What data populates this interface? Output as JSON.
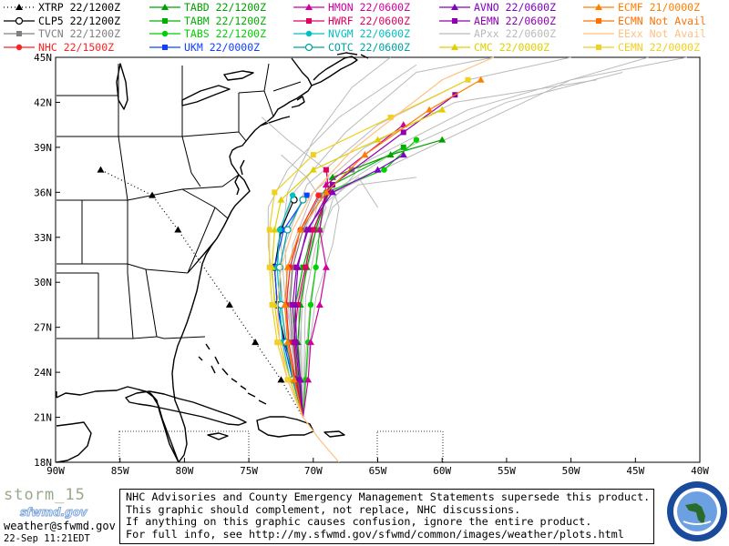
{
  "legend": [
    {
      "id": "xtrp",
      "label": "XTRP",
      "time": "22/1200Z",
      "color": "#000000",
      "marker": "triangle",
      "dash": "dotted"
    },
    {
      "id": "clp5",
      "label": "CLP5",
      "time": "22/1200Z",
      "color": "#000000",
      "marker": "open-circle",
      "dash": "solid"
    },
    {
      "id": "tvcn",
      "label": "TVCN",
      "time": "22/1200Z",
      "color": "#808080",
      "marker": "square",
      "dash": "solid"
    },
    {
      "id": "nhc",
      "label": "NHC",
      "time": "22/1500Z",
      "color": "#ff2020",
      "marker": "circle",
      "dash": "solid"
    },
    {
      "id": "tabd",
      "label": "TABD",
      "time": "22/1200Z",
      "color": "#00a000",
      "marker": "triangle",
      "dash": "solid"
    },
    {
      "id": "tabm",
      "label": "TABM",
      "time": "22/1200Z",
      "color": "#00b000",
      "marker": "square",
      "dash": "solid"
    },
    {
      "id": "tabs",
      "label": "TABS",
      "time": "22/1200Z",
      "color": "#00d000",
      "marker": "circle",
      "dash": "solid"
    },
    {
      "id": "ukm",
      "label": "UKM",
      "time": "22/0000Z",
      "color": "#1040ff",
      "marker": "square",
      "dash": "solid"
    },
    {
      "id": "hmon",
      "label": "HMON",
      "time": "22/0600Z",
      "color": "#d000a0",
      "marker": "triangle",
      "dash": "solid"
    },
    {
      "id": "hwrf",
      "label": "HWRF",
      "time": "22/0600Z",
      "color": "#e00060",
      "marker": "square",
      "dash": "solid"
    },
    {
      "id": "nvgm",
      "label": "NVGM",
      "time": "22/0600Z",
      "color": "#00c0c0",
      "marker": "circle",
      "dash": "solid"
    },
    {
      "id": "cotc",
      "label": "COTC",
      "time": "22/0600Z",
      "color": "#00a0a0",
      "marker": "open-circle",
      "dash": "solid"
    },
    {
      "id": "avno",
      "label": "AVNO",
      "time": "22/0600Z",
      "color": "#8000c0",
      "marker": "triangle",
      "dash": "solid"
    },
    {
      "id": "aemn",
      "label": "AEMN",
      "time": "22/0600Z",
      "color": "#9000b0",
      "marker": "square",
      "dash": "solid"
    },
    {
      "id": "apxx",
      "label": "APxx",
      "time": "22/0600Z",
      "color": "#bbbbbb",
      "marker": "none",
      "dash": "solid"
    },
    {
      "id": "cmc",
      "label": "CMC",
      "time": "22/0000Z",
      "color": "#e0d000",
      "marker": "triangle",
      "dash": "solid"
    },
    {
      "id": "ecmf",
      "label": "ECMF",
      "time": "21/0000Z",
      "color": "#ff8000",
      "marker": "triangle",
      "dash": "solid"
    },
    {
      "id": "ecmn",
      "label": "ECMN",
      "time": "Not Avail",
      "color": "#ff7000",
      "marker": "square",
      "dash": "solid"
    },
    {
      "id": "eexx",
      "label": "EExx",
      "time": "Not Avail",
      "color": "#ffc080",
      "marker": "none",
      "dash": "solid"
    },
    {
      "id": "cemn",
      "label": "CEMN",
      "time": "22/0000Z",
      "color": "#f0d020",
      "marker": "square",
      "dash": "solid"
    }
  ],
  "axes": {
    "lon_labels": [
      "90W",
      "85W",
      "80W",
      "75W",
      "70W",
      "65W",
      "60W",
      "55W",
      "50W",
      "45W",
      "40W"
    ],
    "lat_labels": [
      "45N",
      "42N",
      "39N",
      "36N",
      "33N",
      "30N",
      "27N",
      "24N",
      "21N",
      "18N"
    ],
    "lon_range": [
      -90,
      -40
    ],
    "lat_range": [
      18,
      45
    ]
  },
  "footer": {
    "storm_name": "storm_15",
    "logo_text": "sfwmd.gov",
    "email": "weather@sfwmd.gov",
    "datetime": "22-Sep 11:21EDT",
    "disclaimer": [
      "NHC Advisories and County Emergency Management Statements supersede this product.",
      "This graphic should complement, not replace, NHC discussions.",
      "If anything on this graphic causes confusion, ignore the entire product.",
      "For full info, see  http://my.sfwmd.gov/sfwmd/common/images/weather/plots.html"
    ]
  },
  "tracks": [
    {
      "model": "xtrp",
      "points": [
        [
          -70.8,
          21.0
        ],
        [
          -72.5,
          23.5
        ],
        [
          -74.5,
          26.0
        ],
        [
          -76.5,
          28.5
        ],
        [
          -78.5,
          31.0
        ],
        [
          -80.5,
          33.5
        ],
        [
          -82.5,
          35.8
        ],
        [
          -86.5,
          37.5
        ]
      ]
    },
    {
      "model": "clp5",
      "points": [
        [
          -70.8,
          21.0
        ],
        [
          -71.4,
          23.5
        ],
        [
          -72.2,
          26.0
        ],
        [
          -72.8,
          28.5
        ],
        [
          -73.0,
          31.0
        ],
        [
          -72.5,
          33.5
        ],
        [
          -71.5,
          35.5
        ]
      ]
    },
    {
      "model": "tvcn",
      "points": [
        [
          -70.8,
          21.0
        ],
        [
          -71.2,
          23.5
        ],
        [
          -71.6,
          26.0
        ],
        [
          -71.8,
          28.5
        ],
        [
          -71.6,
          31.0
        ],
        [
          -70.8,
          33.5
        ],
        [
          -69.5,
          35.8
        ],
        [
          -67.0,
          37.5
        ]
      ]
    },
    {
      "model": "nhc",
      "points": [
        [
          -70.8,
          21.0
        ],
        [
          -71.4,
          23.5
        ],
        [
          -71.9,
          26.0
        ],
        [
          -72.1,
          28.5
        ],
        [
          -71.8,
          31.0
        ],
        [
          -71.0,
          33.5
        ],
        [
          -69.6,
          35.8
        ]
      ]
    },
    {
      "model": "tabd",
      "points": [
        [
          -70.8,
          21.0
        ],
        [
          -71.0,
          23.5
        ],
        [
          -71.2,
          26.0
        ],
        [
          -71.0,
          28.5
        ],
        [
          -70.5,
          31.0
        ],
        [
          -69.8,
          33.5
        ],
        [
          -68.5,
          37.0
        ],
        [
          -64.0,
          38.5
        ],
        [
          -60.0,
          39.5
        ]
      ]
    },
    {
      "model": "tabm",
      "points": [
        [
          -70.8,
          21.0
        ],
        [
          -71.2,
          23.5
        ],
        [
          -71.5,
          26.0
        ],
        [
          -71.4,
          28.5
        ],
        [
          -70.8,
          31.0
        ],
        [
          -70.0,
          33.5
        ],
        [
          -68.5,
          36.5
        ],
        [
          -63.0,
          39.0
        ]
      ]
    },
    {
      "model": "tabs",
      "points": [
        [
          -70.8,
          21.0
        ],
        [
          -70.6,
          23.5
        ],
        [
          -70.4,
          26.0
        ],
        [
          -70.2,
          28.5
        ],
        [
          -69.8,
          31.0
        ],
        [
          -69.5,
          33.5
        ],
        [
          -69.0,
          36.0
        ],
        [
          -64.5,
          37.5
        ],
        [
          -62.0,
          39.5
        ]
      ]
    },
    {
      "model": "ukm",
      "points": [
        [
          -70.8,
          21.0
        ],
        [
          -71.6,
          23.5
        ],
        [
          -72.3,
          26.0
        ],
        [
          -72.8,
          28.5
        ],
        [
          -73.0,
          31.0
        ],
        [
          -72.3,
          33.5
        ],
        [
          -70.5,
          35.8
        ]
      ]
    },
    {
      "model": "hmon",
      "points": [
        [
          -70.8,
          21.0
        ],
        [
          -70.4,
          23.5
        ],
        [
          -70.2,
          26.0
        ],
        [
          -69.5,
          28.5
        ],
        [
          -69.0,
          31.0
        ],
        [
          -69.5,
          33.5
        ],
        [
          -69.0,
          36.5
        ],
        [
          -66.0,
          38.5
        ],
        [
          -63.0,
          40.5
        ]
      ]
    },
    {
      "model": "hwrf",
      "points": [
        [
          -70.8,
          21.0
        ],
        [
          -71.3,
          23.5
        ],
        [
          -71.5,
          26.0
        ],
        [
          -71.2,
          28.5
        ],
        [
          -70.6,
          31.0
        ],
        [
          -70.0,
          33.5
        ],
        [
          -68.8,
          36.0
        ],
        [
          -69.0,
          37.5
        ]
      ]
    },
    {
      "model": "nvgm",
      "points": [
        [
          -70.8,
          21.0
        ],
        [
          -71.8,
          23.5
        ],
        [
          -72.4,
          26.0
        ],
        [
          -72.6,
          28.5
        ],
        [
          -72.8,
          31.0
        ],
        [
          -72.6,
          33.5
        ],
        [
          -71.6,
          35.8
        ]
      ]
    },
    {
      "model": "cotc",
      "points": [
        [
          -70.8,
          21.0
        ],
        [
          -71.6,
          23.5
        ],
        [
          -72.1,
          26.0
        ],
        [
          -72.5,
          28.5
        ],
        [
          -72.6,
          31.0
        ],
        [
          -72.0,
          33.5
        ],
        [
          -70.8,
          35.5
        ]
      ]
    },
    {
      "model": "avno",
      "points": [
        [
          -70.8,
          21.0
        ],
        [
          -71.0,
          23.5
        ],
        [
          -71.3,
          26.0
        ],
        [
          -71.4,
          28.5
        ],
        [
          -71.2,
          31.0
        ],
        [
          -70.5,
          33.5
        ],
        [
          -68.5,
          36.0
        ],
        [
          -65.0,
          37.5
        ],
        [
          -63.0,
          38.5
        ]
      ]
    },
    {
      "model": "aemn",
      "points": [
        [
          -70.8,
          21.0
        ],
        [
          -71.1,
          23.5
        ],
        [
          -71.4,
          26.0
        ],
        [
          -71.6,
          28.5
        ],
        [
          -71.3,
          31.0
        ],
        [
          -70.4,
          33.5
        ],
        [
          -68.5,
          36.5
        ],
        [
          -63.0,
          40.0
        ],
        [
          -59.0,
          42.5
        ]
      ]
    },
    {
      "model": "cmc",
      "points": [
        [
          -70.8,
          21.0
        ],
        [
          -71.8,
          23.5
        ],
        [
          -72.6,
          26.0
        ],
        [
          -73.0,
          28.5
        ],
        [
          -73.2,
          31.0
        ],
        [
          -73.0,
          33.5
        ],
        [
          -72.5,
          35.5
        ],
        [
          -70.0,
          37.5
        ],
        [
          -65.0,
          39.5
        ],
        [
          -60.0,
          41.5
        ]
      ]
    },
    {
      "model": "ecmf",
      "points": [
        [
          -70.8,
          21.0
        ],
        [
          -71.5,
          23.5
        ],
        [
          -72.0,
          26.0
        ],
        [
          -72.2,
          28.5
        ],
        [
          -72.0,
          31.0
        ],
        [
          -71.0,
          33.5
        ],
        [
          -69.0,
          36.0
        ],
        [
          -66.0,
          38.5
        ],
        [
          -61.0,
          41.5
        ],
        [
          -57.0,
          43.5
        ]
      ]
    },
    {
      "model": "cemn",
      "points": [
        [
          -70.8,
          21.0
        ],
        [
          -72.0,
          23.5
        ],
        [
          -72.8,
          26.0
        ],
        [
          -73.2,
          28.5
        ],
        [
          -73.4,
          31.0
        ],
        [
          -73.4,
          33.5
        ],
        [
          -73.0,
          36.0
        ],
        [
          -70.0,
          38.5
        ],
        [
          -64.0,
          41.0
        ],
        [
          -58.0,
          43.5
        ]
      ]
    },
    {
      "model": "eexx",
      "points": [
        [
          -70.8,
          21.0
        ],
        [
          -72.0,
          23.5
        ],
        [
          -72.6,
          26.0
        ],
        [
          -72.8,
          28.5
        ],
        [
          -72.5,
          31.0
        ],
        [
          -71.6,
          33.5
        ],
        [
          -70.2,
          35.8
        ],
        [
          -67.0,
          38.8
        ],
        [
          -63.0,
          41.5
        ],
        [
          -60.0,
          43.5
        ],
        [
          -56.0,
          45.0
        ]
      ]
    },
    {
      "model": "eexx",
      "points": [
        [
          -70.8,
          21.0
        ],
        [
          -69.5,
          19.5
        ],
        [
          -68.0,
          18.0
        ]
      ]
    }
  ],
  "ensemble_tracks": [
    {
      "model": "apxx",
      "points": [
        [
          -70.8,
          21.0
        ],
        [
          -71.2,
          25.0
        ],
        [
          -71.8,
          29.0
        ],
        [
          -71.6,
          32.5
        ],
        [
          -70.0,
          36.0
        ],
        [
          -66.0,
          39.0
        ],
        [
          -59.0,
          42.0
        ],
        [
          -48.0,
          43.5
        ]
      ]
    },
    {
      "model": "apxx",
      "points": [
        [
          -70.8,
          21.0
        ],
        [
          -70.6,
          25.0
        ],
        [
          -70.2,
          29.0
        ],
        [
          -69.5,
          32.5
        ],
        [
          -68.5,
          35.5
        ],
        [
          -66.0,
          38.0
        ],
        [
          -58.0,
          41.5
        ],
        [
          -44.0,
          45.0
        ]
      ]
    },
    {
      "model": "apxx",
      "points": [
        [
          -70.8,
          21.0
        ],
        [
          -71.5,
          25.0
        ],
        [
          -72.4,
          29.0
        ],
        [
          -72.8,
          32.5
        ],
        [
          -71.5,
          36.0
        ],
        [
          -67.5,
          40.0
        ],
        [
          -62.0,
          44.0
        ],
        [
          -56.0,
          45.0
        ]
      ]
    },
    {
      "model": "apxx",
      "points": [
        [
          -70.8,
          21.0
        ],
        [
          -71.0,
          25.0
        ],
        [
          -71.2,
          29.0
        ],
        [
          -70.2,
          32.5
        ],
        [
          -69.0,
          35.0
        ],
        [
          -70.5,
          37.0
        ],
        [
          -72.5,
          38.5
        ]
      ]
    },
    {
      "model": "apxx",
      "points": [
        [
          -70.8,
          21.0
        ],
        [
          -70.4,
          25.0
        ],
        [
          -69.8,
          29.0
        ],
        [
          -68.5,
          32.5
        ],
        [
          -68.0,
          35.0
        ],
        [
          -69.0,
          37.5
        ],
        [
          -72.0,
          39.5
        ],
        [
          -74.0,
          41.0
        ]
      ]
    },
    {
      "model": "apxx",
      "points": [
        [
          -70.8,
          21.0
        ],
        [
          -72.0,
          25.0
        ],
        [
          -73.0,
          29.0
        ],
        [
          -73.5,
          32.5
        ],
        [
          -73.5,
          35.0
        ],
        [
          -72.0,
          37.5
        ],
        [
          -68.0,
          41.0
        ],
        [
          -62.0,
          44.5
        ]
      ]
    },
    {
      "model": "apxx",
      "points": [
        [
          -70.8,
          21.0
        ],
        [
          -71.3,
          25.0
        ],
        [
          -71.9,
          29.0
        ],
        [
          -71.3,
          32.5
        ],
        [
          -69.5,
          35.5
        ],
        [
          -64.0,
          38.5
        ],
        [
          -55.0,
          42.0
        ],
        [
          -46.0,
          44.0
        ]
      ]
    },
    {
      "model": "apxx",
      "points": [
        [
          -70.8,
          21.0
        ],
        [
          -70.9,
          25.0
        ],
        [
          -71.0,
          29.0
        ],
        [
          -70.0,
          32.5
        ],
        [
          -69.5,
          35.0
        ],
        [
          -66.5,
          37.0
        ],
        [
          -65.0,
          35.0
        ]
      ]
    },
    {
      "model": "apxx",
      "points": [
        [
          -70.8,
          21.0
        ],
        [
          -71.6,
          25.0
        ],
        [
          -72.0,
          29.0
        ],
        [
          -72.2,
          32.5
        ],
        [
          -70.5,
          36.5
        ],
        [
          -65.0,
          40.5
        ],
        [
          -58.0,
          43.5
        ],
        [
          -50.0,
          45.0
        ]
      ]
    },
    {
      "model": "apxx",
      "points": [
        [
          -70.8,
          21.0
        ],
        [
          -70.7,
          25.0
        ],
        [
          -70.6,
          29.0
        ],
        [
          -69.8,
          32.5
        ],
        [
          -68.5,
          35.0
        ],
        [
          -66.5,
          36.5
        ],
        [
          -62.0,
          37.0
        ]
      ]
    },
    {
      "model": "apxx",
      "points": [
        [
          -70.8,
          21.0
        ],
        [
          -71.4,
          25.0
        ],
        [
          -72.2,
          29.0
        ],
        [
          -72.5,
          32.5
        ],
        [
          -72.0,
          36.0
        ],
        [
          -70.0,
          39.5
        ],
        [
          -67.0,
          43.0
        ],
        [
          -64.0,
          45.0
        ]
      ]
    },
    {
      "model": "apxx",
      "points": [
        [
          -70.8,
          21.0
        ],
        [
          -71.1,
          25.0
        ],
        [
          -70.8,
          29.0
        ],
        [
          -70.4,
          32.5
        ],
        [
          -69.6,
          35.5
        ],
        [
          -61.0,
          39.0
        ],
        [
          -50.0,
          43.5
        ],
        [
          -41.0,
          45.0
        ]
      ]
    }
  ],
  "markers": {
    "xtrp": [
      [
        -72.5,
        23.5
      ],
      [
        -74.5,
        26.0
      ],
      [
        -76.5,
        28.5
      ],
      [
        -80.5,
        33.5
      ],
      [
        -82.5,
        35.8
      ],
      [
        -86.5,
        37.5
      ]
    ]
  }
}
